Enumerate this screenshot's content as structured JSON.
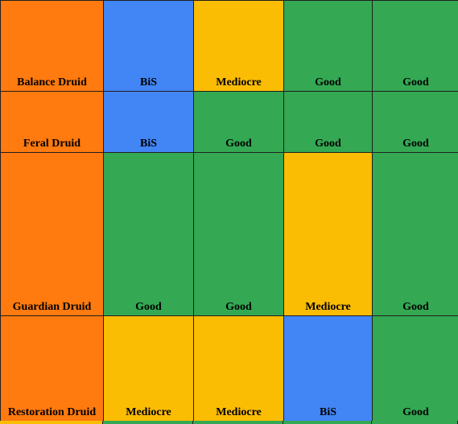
{
  "sheet": {
    "rows": [
      {
        "spec": "Balance Druid",
        "ratings": [
          "BiS",
          "Mediocre",
          "Good",
          "Good"
        ]
      },
      {
        "spec": "Feral Druid",
        "ratings": [
          "BiS",
          "Good",
          "Good",
          "Good"
        ]
      },
      {
        "spec": "Guardian Druid",
        "ratings": [
          "Good",
          "Good",
          "Mediocre",
          "Good"
        ]
      },
      {
        "spec": "Restoration Druid",
        "ratings": [
          "Mediocre",
          "Mediocre",
          "BiS",
          "Good"
        ]
      }
    ]
  },
  "colors": {
    "spec": "#ff7a0f",
    "BiS": "#4285f4",
    "Good": "#34a853",
    "Mediocre": "#fbbc04",
    "border": "#1f1f1f"
  }
}
